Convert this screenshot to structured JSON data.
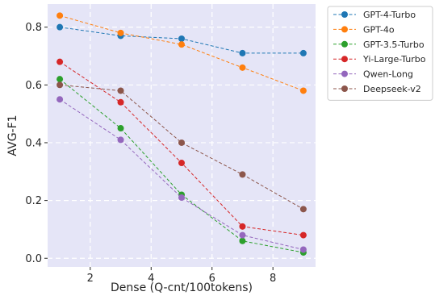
{
  "chart_data": {
    "type": "line",
    "title": "",
    "xlabel": "Dense (Q-cnt/100tokens)",
    "ylabel": "AVG-F1",
    "x": [
      1,
      3,
      5,
      7,
      9
    ],
    "xlim": [
      0.6,
      9.4
    ],
    "ylim": [
      -0.03,
      0.88
    ],
    "xticks": [
      2,
      4,
      6,
      8
    ],
    "yticks": [
      0.0,
      0.2,
      0.4,
      0.6,
      0.8
    ],
    "xtick_labels": [
      "2",
      "4",
      "6",
      "8"
    ],
    "ytick_labels": [
      "0.0",
      "0.2",
      "0.4",
      "0.6",
      "0.8"
    ],
    "grid": true,
    "background": "#e5e5f7",
    "line_style": "dashed",
    "marker": "circle",
    "legend_position": "outside-top-right",
    "series": [
      {
        "name": "GPT-4-Turbo",
        "color": "#1f77b4",
        "values": [
          0.8,
          0.77,
          0.76,
          0.71,
          0.71
        ]
      },
      {
        "name": "GPT-4o",
        "color": "#ff7f0e",
        "values": [
          0.84,
          0.78,
          0.74,
          0.66,
          0.58
        ]
      },
      {
        "name": "GPT-3.5-Turbo",
        "color": "#2ca02c",
        "values": [
          0.62,
          0.45,
          0.22,
          0.06,
          0.02
        ]
      },
      {
        "name": "Yi-Large-Turbo",
        "color": "#d62728",
        "values": [
          0.68,
          0.54,
          0.33,
          0.11,
          0.08
        ]
      },
      {
        "name": "Qwen-Long",
        "color": "#9467bd",
        "values": [
          0.55,
          0.41,
          0.21,
          0.08,
          0.03
        ]
      },
      {
        "name": "Deepseek-v2",
        "color": "#8c564b",
        "values": [
          0.6,
          0.58,
          0.4,
          0.29,
          0.17
        ]
      }
    ]
  }
}
